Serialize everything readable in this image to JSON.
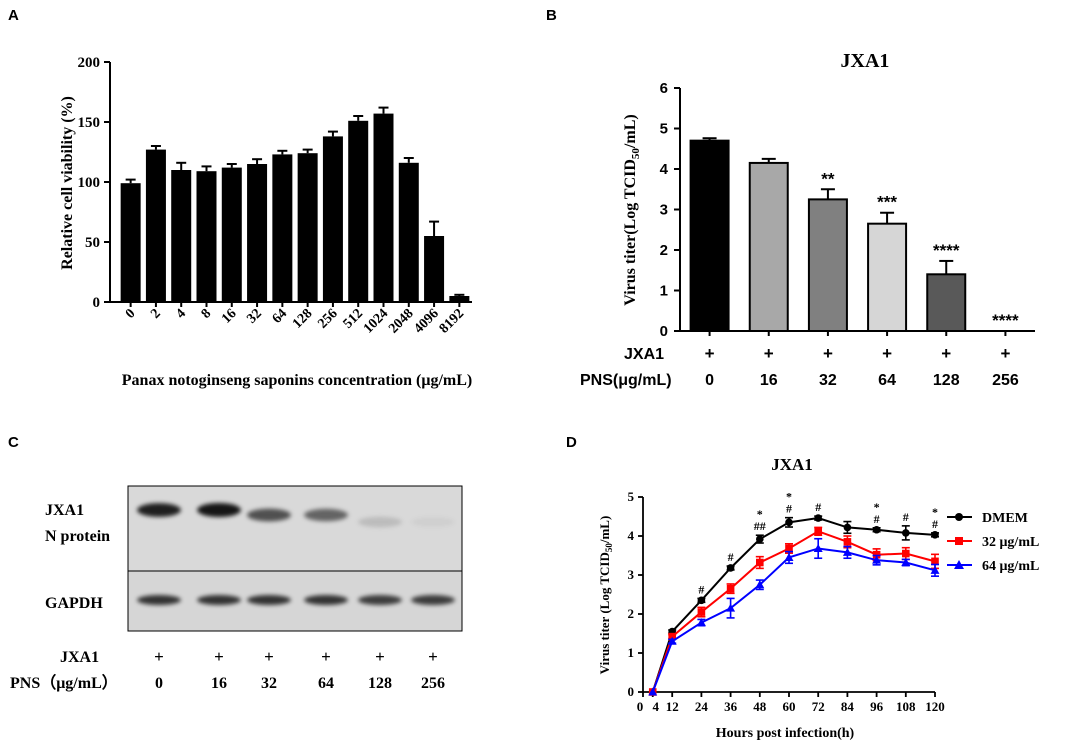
{
  "chart_data": [
    {
      "panel": "A",
      "type": "bar",
      "title": "",
      "xlabel": "Panax notoginseng saponins concentration (μg/mL)",
      "ylabel": "Relative cell viability (%)",
      "ylim": [
        0,
        200
      ],
      "yticks": [
        "0",
        "50",
        "100",
        "150",
        "200"
      ],
      "categories": [
        "0",
        "2",
        "4",
        "8",
        "16",
        "32",
        "64",
        "128",
        "256",
        "512",
        "1024",
        "2048",
        "4096",
        "8192"
      ],
      "values": [
        99,
        127,
        110,
        109,
        112,
        115,
        123,
        124,
        138,
        151,
        157,
        116,
        55,
        5
      ],
      "errors": [
        3,
        3,
        6,
        4,
        3,
        4,
        3,
        3,
        4,
        4,
        5,
        4,
        12,
        1
      ],
      "color": "#000000"
    },
    {
      "panel": "B",
      "type": "bar",
      "title": "JXA1",
      "xlabel": "",
      "ylabel": "Virus titer(Log TCID50/mL)",
      "ylabel_main": "Virus titer(Log TCID",
      "ylabel_sub": "50",
      "ylabel_tail": "/mL)",
      "ylim": [
        0,
        6
      ],
      "yticks": [
        "0",
        "1",
        "2",
        "3",
        "4",
        "5",
        "6"
      ],
      "categories": [
        "0",
        "16",
        "32",
        "64",
        "128",
        "256"
      ],
      "values": [
        4.7,
        4.15,
        3.25,
        2.65,
        1.4,
        0
      ],
      "errors": [
        0.06,
        0.1,
        0.25,
        0.27,
        0.33,
        0
      ],
      "colors": [
        "#000000",
        "#a8a8a8",
        "#808080",
        "#d6d6d6",
        "#595959",
        "#ffffff"
      ],
      "significance": [
        "",
        "",
        "**",
        "***",
        "****",
        "****"
      ],
      "row_labels": {
        "virus": "JXA1",
        "pns": "PNS(μg/mL)"
      },
      "plus_marks": [
        "+",
        "+",
        "+",
        "+",
        "+",
        "+"
      ]
    },
    {
      "panel": "D",
      "type": "line",
      "title": "JXA1",
      "xlabel": "Hours post infection(h)",
      "ylabel": "Virus titer (Log TCID50/mL)",
      "ylabel_main": "Virus titer (Log TCID",
      "ylabel_sub": "50",
      "ylabel_tail": "/mL)",
      "xlim": [
        0,
        120
      ],
      "ylim": [
        0,
        5
      ],
      "xticks": [
        0,
        4,
        12,
        24,
        36,
        48,
        60,
        72,
        84,
        96,
        108,
        120
      ],
      "xtick_labels": [
        "0",
        "4",
        "12",
        "24",
        "36",
        "48",
        "60",
        "72",
        "84",
        "96",
        "108",
        "120"
      ],
      "yticks": [
        "0",
        "1",
        "2",
        "3",
        "4",
        "5"
      ],
      "x": [
        4,
        12,
        24,
        36,
        48,
        60,
        72,
        84,
        96,
        108,
        120
      ],
      "series": [
        {
          "name": "DMEM",
          "color": "#000000",
          "marker": "circle",
          "values": [
            0,
            1.55,
            2.35,
            3.18,
            3.92,
            4.35,
            4.46,
            4.22,
            4.16,
            4.08,
            4.03
          ],
          "errors": [
            0,
            0.04,
            0.05,
            0.05,
            0.1,
            0.12,
            0.05,
            0.15,
            0.05,
            0.18,
            0.05
          ]
        },
        {
          "name": "32 μg/mL",
          "color": "#ff0000",
          "marker": "square",
          "values": [
            0,
            1.42,
            2.05,
            2.65,
            3.32,
            3.68,
            4.12,
            3.85,
            3.52,
            3.55,
            3.35
          ],
          "errors": [
            0,
            0.05,
            0.12,
            0.12,
            0.15,
            0.12,
            0.1,
            0.15,
            0.15,
            0.15,
            0.18
          ]
        },
        {
          "name": "64 μg/mL",
          "color": "#0000ff",
          "marker": "triangle",
          "values": [
            0,
            1.3,
            1.78,
            2.15,
            2.75,
            3.45,
            3.68,
            3.58,
            3.38,
            3.32,
            3.12
          ],
          "errors": [
            0,
            0.05,
            0.08,
            0.25,
            0.12,
            0.15,
            0.25,
            0.15,
            0.12,
            0.08,
            0.15
          ]
        }
      ],
      "annotations": [
        {
          "x": 24,
          "lines": [
            "#"
          ]
        },
        {
          "x": 36,
          "lines": [
            "#"
          ]
        },
        {
          "x": 48,
          "lines": [
            "*",
            "##"
          ]
        },
        {
          "x": 60,
          "lines": [
            "*",
            "#"
          ]
        },
        {
          "x": 72,
          "lines": [
            "#"
          ]
        },
        {
          "x": 96,
          "lines": [
            "*",
            "#"
          ]
        },
        {
          "x": 108,
          "lines": [
            "#"
          ]
        },
        {
          "x": 120,
          "lines": [
            "*",
            "#"
          ]
        }
      ]
    }
  ],
  "panel_letters": [
    "A",
    "B",
    "C",
    "D"
  ],
  "blot": {
    "label_top_line1": "JXA1",
    "label_top_line2": "N protein",
    "label_bottom": "GAPDH",
    "row_virus_label": "JXA1",
    "row_pns_label": "PNS（μg/mL）",
    "plus_marks": [
      "+",
      "+",
      "+",
      "+",
      "+",
      "+"
    ],
    "lanes": [
      "0",
      "16",
      "32",
      "64",
      "128",
      "256"
    ],
    "n_protein_intensity": [
      0.95,
      1.0,
      0.7,
      0.6,
      0.15,
      0.05
    ],
    "gapdh_intensity": [
      0.9,
      0.9,
      0.9,
      0.9,
      0.85,
      0.85
    ]
  }
}
